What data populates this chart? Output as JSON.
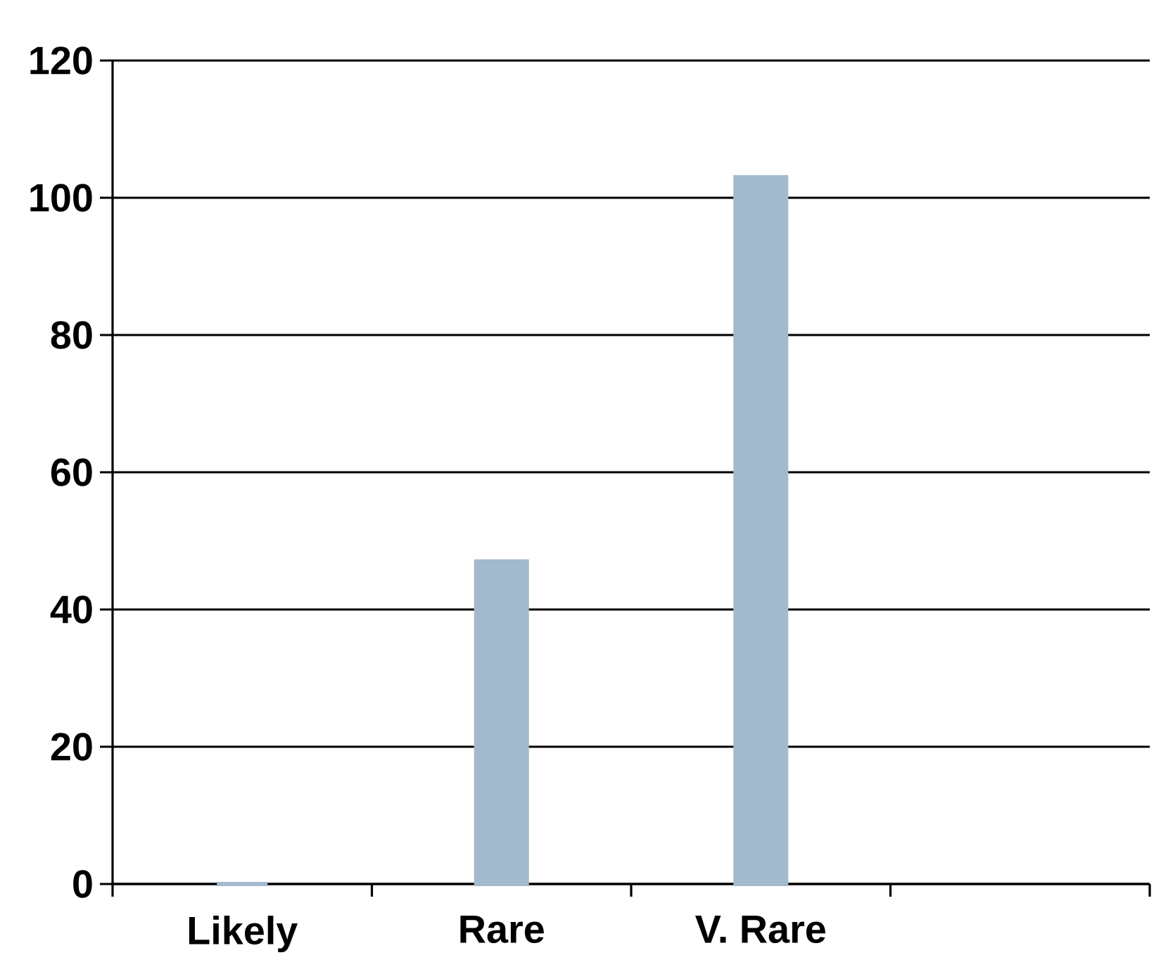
{
  "chart_data": {
    "type": "bar",
    "categories": [
      "Likely",
      "Rare",
      "V. Rare",
      null
    ],
    "values": [
      0,
      47,
      103,
      null
    ],
    "color": "#a3b9cc",
    "ylim": [
      0,
      120
    ],
    "yticks": [
      0,
      20,
      40,
      60,
      80,
      100,
      120
    ],
    "grid": "y"
  }
}
